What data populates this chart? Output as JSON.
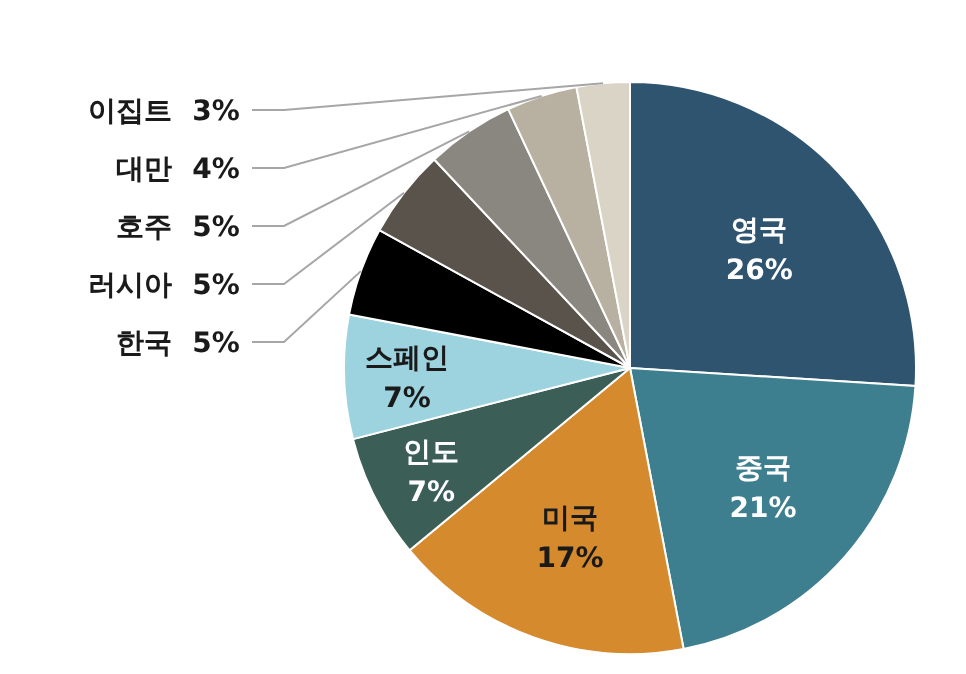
{
  "chart_data": {
    "type": "pie",
    "categories": [
      "영국",
      "중국",
      "미국",
      "인도",
      "스페인",
      "한국",
      "러시아",
      "호주",
      "대만",
      "이집트"
    ],
    "values": [
      26,
      21,
      17,
      7,
      7,
      5,
      5,
      5,
      4,
      3
    ],
    "value_labels": [
      "26%",
      "21%",
      "17%",
      "7%",
      "7%",
      "5%",
      "5%",
      "5%",
      "4%",
      "3%"
    ],
    "colors": [
      "#2f5470",
      "#3d7f8f",
      "#d68a2e",
      "#3b5e57",
      "#9dd3df",
      "#000000",
      "#5a534c",
      "#8a8680",
      "#b8b0a0",
      "#d9d4c6"
    ]
  }
}
